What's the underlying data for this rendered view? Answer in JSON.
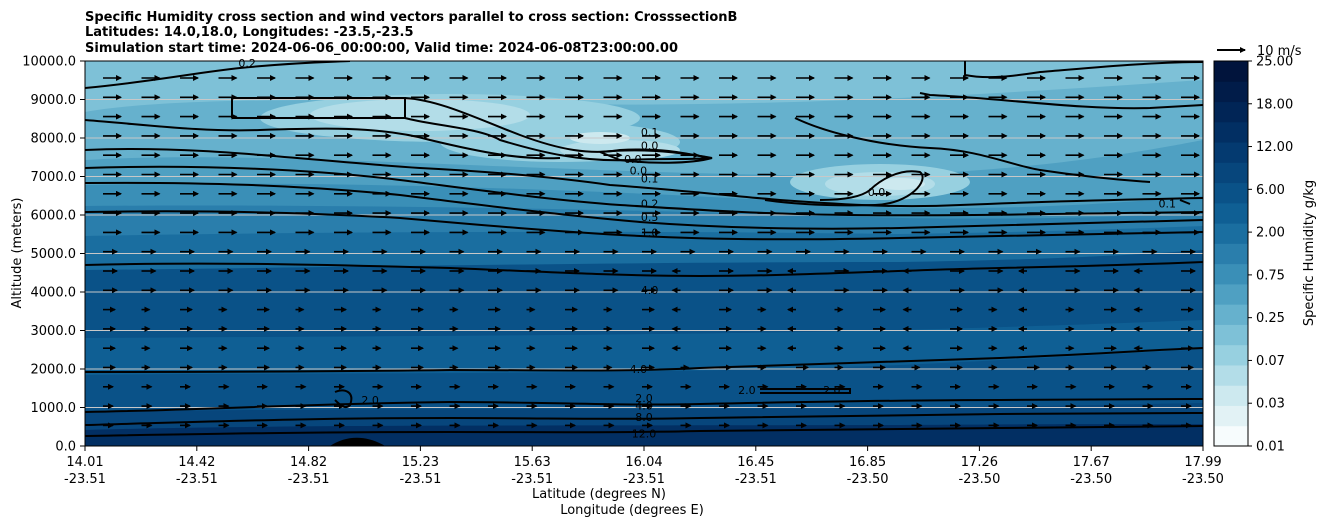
{
  "chart_data": {
    "type": "heatmap",
    "title_lines": [
      "Specific Humidity cross section and wind vectors parallel to cross section: CrosssectionB",
      "Latitudes: 14.0,18.0, Longitudes: -23.5,-23.5",
      "Simulation start time: 2024-06-06_00:00:00, Valid time: 2024-06-08T23:00:00.00"
    ],
    "ylabel": "Altitude (meters)",
    "xlabel_lat": "Latitude (degrees N)",
    "xlabel_lon": "Longitude (degrees E)",
    "ylim": [
      0,
      10000
    ],
    "y_ticks": [
      "0.0",
      "1000.0",
      "2000.0",
      "3000.0",
      "4000.0",
      "5000.0",
      "6000.0",
      "7000.0",
      "8000.0",
      "9000.0",
      "10000.0"
    ],
    "y_tick_values": [
      0,
      1000,
      2000,
      3000,
      4000,
      5000,
      6000,
      7000,
      8000,
      9000,
      10000
    ],
    "x_ticks_lat": [
      "14.01",
      "14.42",
      "14.82",
      "15.23",
      "15.63",
      "16.04",
      "16.45",
      "16.85",
      "17.26",
      "17.67",
      "17.99"
    ],
    "x_ticks_lon": [
      "-23.51",
      "-23.51",
      "-23.51",
      "-23.51",
      "-23.51",
      "-23.51",
      "-23.51",
      "-23.50",
      "-23.50",
      "-23.50",
      "-23.50"
    ],
    "colorbar": {
      "label": "Specific Humidity g/kg",
      "tick_labels": [
        "0.01",
        "0.03",
        "0.07",
        "0.25",
        "0.75",
        "2.00",
        "6.00",
        "12.00",
        "18.00",
        "25.00"
      ],
      "colors": [
        "#f7fcfd",
        "#e2f2f5",
        "#cde9ef",
        "#b3dde8",
        "#97d0e0",
        "#7ec1d7",
        "#66b1cd",
        "#4fa0c2",
        "#3a8fb7",
        "#2a7eac",
        "#1a6ea0",
        "#0f5f94",
        "#0a5288",
        "#07467c",
        "#043a70",
        "#022f63",
        "#012556",
        "#011c49",
        "#01143c"
      ]
    },
    "wind_key": {
      "label": "10 m/s"
    },
    "contour_labels": [
      {
        "text": "0.2",
        "x": 0.145,
        "y": 9950
      },
      {
        "text": "0.1",
        "x": 0.505,
        "y": 8150
      },
      {
        "text": "0.0",
        "x": 0.505,
        "y": 7800
      },
      {
        "text": "0.0",
        "x": 0.49,
        "y": 7450
      },
      {
        "text": "0.0",
        "x": 0.495,
        "y": 7150
      },
      {
        "text": "0.1",
        "x": 0.505,
        "y": 6950
      },
      {
        "text": "0.2",
        "x": 0.505,
        "y": 6300
      },
      {
        "text": "0.5",
        "x": 0.505,
        "y": 5950
      },
      {
        "text": "1.0",
        "x": 0.505,
        "y": 5550
      },
      {
        "text": "4.0",
        "x": 0.505,
        "y": 4050
      },
      {
        "text": "4.0",
        "x": 0.495,
        "y": 2000
      },
      {
        "text": "2.0",
        "x": 0.255,
        "y": 1200
      },
      {
        "text": "2.0",
        "x": 0.5,
        "y": 1250
      },
      {
        "text": "4.0",
        "x": 0.5,
        "y": 1050
      },
      {
        "text": "8.0",
        "x": 0.5,
        "y": 750
      },
      {
        "text": "12.0",
        "x": 0.5,
        "y": 330
      },
      {
        "text": "2.0",
        "x": 0.592,
        "y": 1450
      },
      {
        "text": "2.0",
        "x": 0.668,
        "y": 1450
      },
      {
        "text": "0.0",
        "x": 0.708,
        "y": 6600
      },
      {
        "text": "0.1",
        "x": 0.968,
        "y": 6300
      }
    ]
  }
}
